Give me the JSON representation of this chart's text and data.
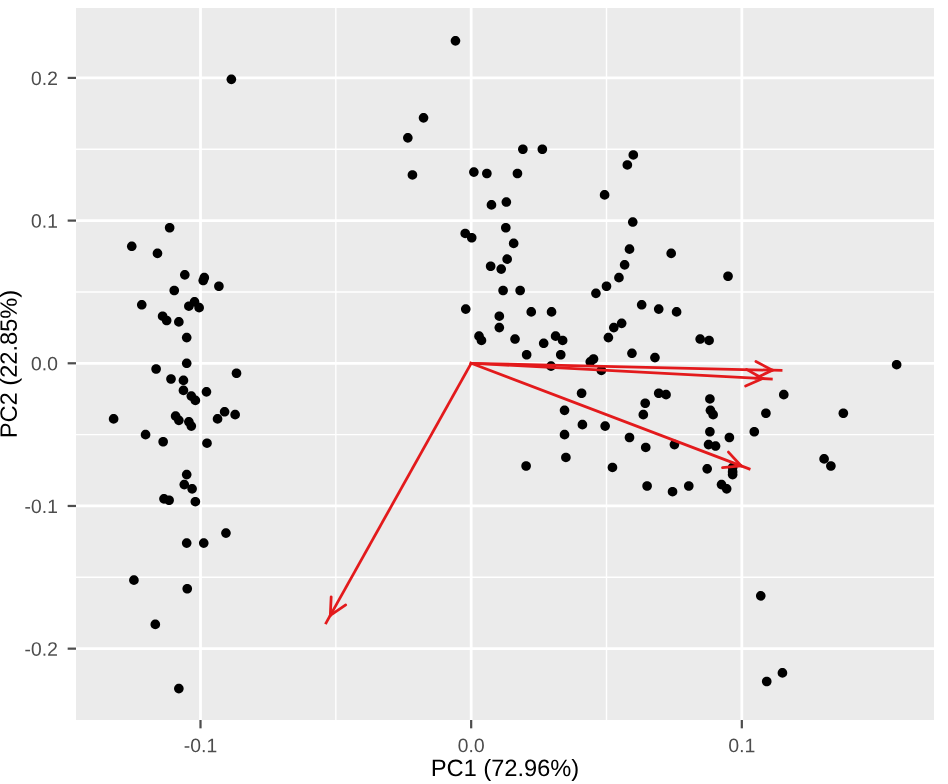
{
  "chart_data": {
    "type": "scatter",
    "xlabel": "PC1 (72.96%)",
    "ylabel": "PC2 (22.85%)",
    "xlim": [
      -0.146,
      0.171
    ],
    "ylim": [
      -0.25,
      0.249
    ],
    "xticks": [
      {
        "value": -0.1,
        "label": "-0.1"
      },
      {
        "value": 0.0,
        "label": "0.0"
      },
      {
        "value": 0.1,
        "label": "0.1"
      }
    ],
    "yticks": [
      {
        "value": -0.2,
        "label": "-0.2"
      },
      {
        "value": -0.1,
        "label": "-0.1"
      },
      {
        "value": 0.0,
        "label": "0.0"
      },
      {
        "value": 0.1,
        "label": "0.1"
      },
      {
        "value": 0.2,
        "label": "0.2"
      }
    ],
    "grid": true,
    "marker": "circle",
    "series": [
      {
        "type": "scatter",
        "color": "#000000",
        "x": [
          -0.0886,
          -0.0058,
          -0.0176,
          -0.0234,
          -0.0217,
          -0.1114,
          -0.1254,
          -0.1159,
          -0.1058,
          -0.0986,
          -0.099,
          -0.0932,
          -0.1097,
          -0.1217,
          -0.1022,
          -0.1043,
          -0.1005,
          -0.114,
          -0.1125,
          -0.108,
          -0.1051,
          -0.1051,
          -0.0022,
          0.0002,
          -0.002,
          0.0029,
          0.0038,
          -0.1164,
          -0.0867,
          -0.1109,
          -0.1063,
          -0.1063,
          -0.1034,
          -0.1019,
          -0.0978,
          -0.1321,
          -0.1092,
          -0.108,
          -0.1043,
          -0.1034,
          -0.0937,
          -0.0911,
          -0.0872,
          -0.1203,
          -0.1138,
          -0.0976,
          -0.1051,
          -0.106,
          -0.1031,
          -0.1135,
          -0.1116,
          -0.1019,
          -0.0906,
          -0.1051,
          -0.0988,
          -0.1246,
          -0.1049,
          -0.1167,
          -0.108,
          0.0191,
          0.0263,
          0.0599,
          0.0577,
          0.001,
          0.0058,
          0.0171,
          0.0075,
          0.013,
          0.0493,
          0.0597,
          0.0128,
          0.0157,
          0.0585,
          0.0739,
          0.0133,
          0.0567,
          0.0072,
          0.0111,
          0.0949,
          0.0546,
          0.05,
          0.0461,
          0.0118,
          0.0181,
          0.063,
          0.0693,
          0.0759,
          0.0222,
          0.0297,
          0.0104,
          0.0104,
          0.0556,
          0.0527,
          0.0162,
          0.0268,
          0.0312,
          0.0338,
          0.0507,
          0.0846,
          0.0879,
          0.0205,
          0.0331,
          0.0594,
          0.0679,
          0.044,
          0.0452,
          0.0481,
          0.0295,
          0.1572,
          0.1155,
          0.0408,
          0.0693,
          0.072,
          0.0643,
          0.0882,
          0.0345,
          0.0636,
          0.0884,
          0.0894,
          0.1089,
          0.1375,
          0.0411,
          0.0495,
          0.0882,
          0.1046,
          0.0345,
          0.0585,
          0.0954,
          0.0751,
          0.0877,
          0.0903,
          0.0645,
          0.035,
          0.0203,
          0.0522,
          0.0872,
          0.0966,
          0.0966,
          0.0966,
          0.1304,
          0.1329,
          0.065,
          0.0744,
          0.0804,
          0.0925,
          0.0944,
          0.107,
          0.115,
          0.1092
        ],
        "values": [
          0.199,
          0.226,
          0.172,
          0.158,
          0.132,
          0.095,
          0.082,
          0.077,
          0.062,
          0.06,
          0.058,
          0.054,
          0.051,
          0.041,
          0.043,
          0.04,
          0.039,
          0.033,
          0.03,
          0.029,
          0.018,
          0.0,
          0.091,
          0.088,
          0.038,
          0.019,
          0.016,
          -0.004,
          -0.007,
          -0.011,
          -0.012,
          -0.019,
          -0.023,
          -0.026,
          -0.02,
          -0.039,
          -0.037,
          -0.04,
          -0.041,
          -0.044,
          -0.039,
          -0.034,
          -0.036,
          -0.05,
          -0.055,
          -0.056,
          -0.078,
          -0.085,
          -0.088,
          -0.095,
          -0.096,
          -0.097,
          -0.119,
          -0.126,
          -0.126,
          -0.152,
          -0.158,
          -0.183,
          -0.228,
          0.15,
          0.15,
          0.146,
          0.139,
          0.134,
          0.133,
          0.133,
          0.111,
          0.113,
          0.118,
          0.099,
          0.095,
          0.084,
          0.08,
          0.077,
          0.073,
          0.069,
          0.068,
          0.066,
          0.061,
          0.06,
          0.054,
          0.049,
          0.051,
          0.051,
          0.041,
          0.038,
          0.036,
          0.036,
          0.036,
          0.033,
          0.025,
          0.028,
          0.025,
          0.017,
          0.014,
          0.019,
          0.016,
          0.018,
          0.017,
          0.016,
          0.006,
          0.006,
          0.007,
          0.004,
          0.001,
          0.003,
          -0.005,
          -0.002,
          -0.001,
          -0.022,
          -0.021,
          -0.021,
          -0.022,
          -0.028,
          -0.025,
          -0.033,
          -0.036,
          -0.033,
          -0.036,
          -0.035,
          -0.035,
          -0.043,
          -0.044,
          -0.048,
          -0.048,
          -0.05,
          -0.052,
          -0.052,
          -0.057,
          -0.057,
          -0.058,
          -0.059,
          -0.066,
          -0.072,
          -0.073,
          -0.074,
          -0.073,
          -0.076,
          -0.078,
          -0.067,
          -0.072,
          -0.086,
          -0.09,
          -0.086,
          -0.085,
          -0.088,
          -0.163,
          -0.217,
          -0.223
        ]
      },
      {
        "type": "line",
        "marker": "none",
        "color": "#e31a1c",
        "x": [
          0.0,
          0.1145
        ],
        "values": [
          0.0,
          -0.005
        ]
      },
      {
        "type": "line",
        "marker": "none",
        "color": "#e31a1c",
        "x": [
          0.0,
          0.1109
        ],
        "values": [
          0.0,
          -0.011
        ]
      },
      {
        "type": "line",
        "marker": "none",
        "color": "#e31a1c",
        "x": [
          0.0,
          0.1027
        ],
        "values": [
          0.0,
          -0.074
        ]
      },
      {
        "type": "line",
        "marker": "none",
        "color": "#e31a1c",
        "x": [
          0.0,
          -0.0536
        ],
        "values": [
          0.0,
          -0.182
        ]
      }
    ]
  }
}
